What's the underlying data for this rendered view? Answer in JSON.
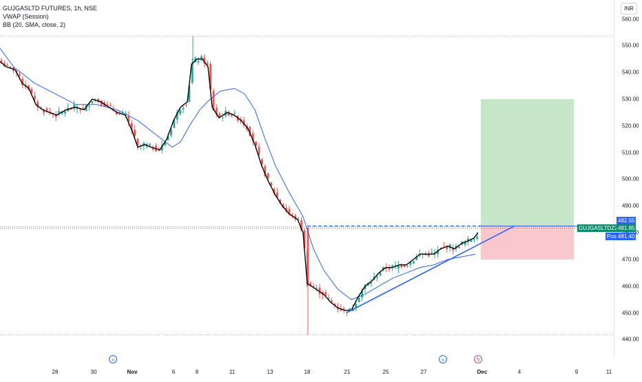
{
  "legend": {
    "symbol_line": "GUJGASLTD FUTURES, 1h, NSE",
    "vwap_line": "VWAP (Session)",
    "bb_line": "BB (20, SMA, close, 2)"
  },
  "currency_button": "INR",
  "price_tags": {
    "symbol_label": "GUJGASLTDZ2024",
    "last_price": "481.85",
    "entry_price": "482.55",
    "post_label": "Post",
    "post_price": "481.40"
  },
  "colors": {
    "up": "#26a69a",
    "down": "#ef5350",
    "vwap": "#000000",
    "bb_basis": "#2962ff",
    "trendline": "#2962ff",
    "target_zone": "#c8e6c9",
    "stop_zone": "#f8c8cc"
  },
  "icons": [
    "forward-arrows-icon",
    "forward-arrows-icon",
    "flash-icon"
  ],
  "chart_data": {
    "type": "candlestick",
    "ylim": [
      440,
      560
    ],
    "y_ticks": [
      "560.00",
      "550.00",
      "540.00",
      "530.00",
      "520.00",
      "510.00",
      "500.00",
      "490.00",
      "480.00",
      "470.00",
      "460.00",
      "450.00",
      "440.00"
    ],
    "x_ticks": [
      "28",
      "30",
      "Nov",
      "6",
      "8",
      "11",
      "13",
      "18",
      "21",
      "25",
      "27",
      "Dec",
      "4",
      "9",
      "11"
    ],
    "close_anchors": [
      [
        0,
        544
      ],
      [
        10,
        542
      ],
      [
        22,
        541
      ],
      [
        32,
        536
      ],
      [
        42,
        534
      ],
      [
        52,
        528
      ],
      [
        62,
        526
      ],
      [
        72,
        525
      ],
      [
        82,
        524
      ],
      [
        96,
        526
      ],
      [
        110,
        527
      ],
      [
        122,
        526
      ],
      [
        134,
        530
      ],
      [
        146,
        529
      ],
      [
        158,
        527
      ],
      [
        170,
        525
      ],
      [
        182,
        524
      ],
      [
        192,
        518
      ],
      [
        200,
        512
      ],
      [
        210,
        513
      ],
      [
        220,
        512
      ],
      [
        232,
        511
      ],
      [
        242,
        515
      ],
      [
        252,
        522
      ],
      [
        262,
        527
      ],
      [
        272,
        529
      ],
      [
        278,
        543
      ],
      [
        286,
        545
      ],
      [
        294,
        545
      ],
      [
        302,
        542
      ],
      [
        308,
        527
      ],
      [
        318,
        523
      ],
      [
        330,
        525
      ],
      [
        340,
        524
      ],
      [
        350,
        522
      ],
      [
        360,
        519
      ],
      [
        370,
        513
      ],
      [
        380,
        505
      ],
      [
        390,
        499
      ],
      [
        400,
        494
      ],
      [
        410,
        490
      ],
      [
        420,
        487
      ],
      [
        432,
        485
      ],
      [
        440,
        480
      ],
      [
        446,
        461
      ],
      [
        458,
        459
      ],
      [
        470,
        457
      ],
      [
        480,
        454
      ],
      [
        490,
        452
      ],
      [
        500,
        451
      ],
      [
        510,
        451
      ],
      [
        520,
        456
      ],
      [
        530,
        460
      ],
      [
        540,
        462
      ],
      [
        550,
        465
      ],
      [
        560,
        467
      ],
      [
        570,
        467
      ],
      [
        580,
        468
      ],
      [
        590,
        468
      ],
      [
        600,
        470
      ],
      [
        610,
        472
      ],
      [
        620,
        472
      ],
      [
        630,
        472
      ],
      [
        640,
        474
      ],
      [
        650,
        475
      ],
      [
        660,
        474
      ],
      [
        670,
        476
      ],
      [
        680,
        477
      ],
      [
        688,
        478
      ],
      [
        694,
        480
      ]
    ],
    "bb_basis": [
      [
        0,
        549
      ],
      [
        20,
        542
      ],
      [
        50,
        536
      ],
      [
        80,
        532
      ],
      [
        110,
        528
      ],
      [
        140,
        528
      ],
      [
        170,
        526
      ],
      [
        200,
        522
      ],
      [
        230,
        516
      ],
      [
        250,
        512
      ],
      [
        262,
        514
      ],
      [
        275,
        520
      ],
      [
        290,
        526
      ],
      [
        305,
        530
      ],
      [
        320,
        533
      ],
      [
        340,
        534
      ],
      [
        355,
        532
      ],
      [
        370,
        526
      ],
      [
        385,
        515
      ],
      [
        400,
        505
      ],
      [
        420,
        495
      ],
      [
        440,
        486
      ],
      [
        455,
        474
      ],
      [
        470,
        466
      ],
      [
        490,
        459
      ],
      [
        510,
        455
      ],
      [
        530,
        457
      ],
      [
        550,
        460
      ],
      [
        570,
        463
      ],
      [
        590,
        465
      ],
      [
        610,
        467
      ],
      [
        630,
        468
      ],
      [
        650,
        470
      ],
      [
        670,
        471
      ],
      [
        690,
        472
      ]
    ],
    "trendline": {
      "from": [
        504,
        450.2
      ],
      "to": [
        746,
        482.4
      ]
    },
    "position": {
      "entry": 482.55,
      "target": 530.0,
      "stop": 470.0,
      "x_start": 698,
      "x_end": 833
    },
    "dotted_levels": [
      553.5,
      441.8
    ],
    "last_price_line": 481.85
  }
}
